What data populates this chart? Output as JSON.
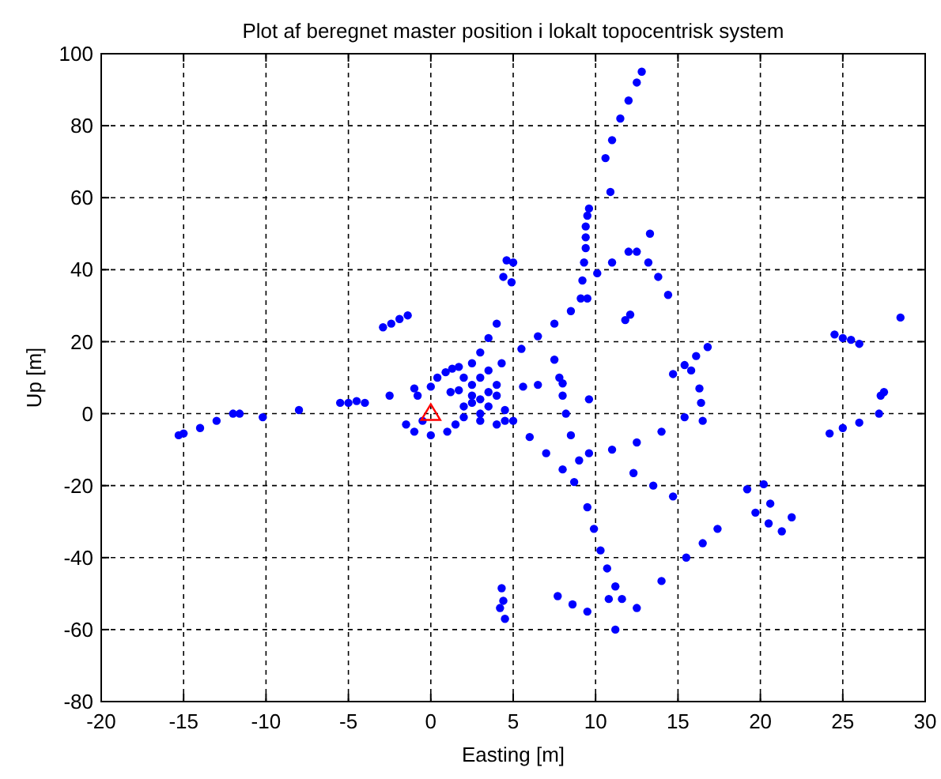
{
  "chart_data": {
    "type": "scatter",
    "title": "Plot af beregnet master position i lokalt topocentrisk system",
    "xlabel": "Easting [m]",
    "ylabel": "Up [m]",
    "xlim": [
      -20,
      30
    ],
    "xticks": [
      -20,
      -15,
      -10,
      -5,
      0,
      5,
      10,
      15,
      20,
      25,
      30
    ],
    "ylim": [
      -80,
      100
    ],
    "yticks": [
      -80,
      -60,
      -40,
      -20,
      0,
      20,
      40,
      60,
      80,
      100
    ],
    "grid": true,
    "series": [
      {
        "color": "#0000ff",
        "marker": "circle",
        "x": [
          -15.3,
          -15,
          -14,
          -13,
          -12,
          -11.6,
          -10.2,
          -8,
          -5.5,
          -5,
          -4.5,
          -4,
          -2.5,
          -1,
          0,
          -1.5,
          -1,
          0,
          -0.5,
          1,
          1.5,
          -2.9,
          -2.4,
          -1.9,
          -1.4,
          0.4,
          0.9,
          1.3,
          1.7,
          -0.8,
          1.2,
          1.7,
          2,
          2.5,
          3,
          3,
          3.5,
          4,
          3,
          4,
          2,
          2.5,
          3,
          3.5,
          4.5,
          4,
          3.5,
          2.5,
          4.5,
          2,
          2.5,
          3,
          3.5,
          4,
          4.3,
          5.5,
          6.5,
          7.5,
          8.5,
          9.5,
          9.1,
          9.2,
          9.3,
          9.4,
          9.4,
          9.4,
          9.5,
          9.6,
          10.1,
          11,
          12,
          13.3,
          12.5,
          13.2,
          13.8,
          14.4,
          10.6,
          11,
          11.5,
          12,
          12.5,
          12.8,
          10.9,
          4.6,
          5,
          4.4,
          4.9,
          7.5,
          7.8,
          8,
          8.2,
          8.5,
          9,
          5,
          6,
          7,
          8,
          8.7,
          9.6,
          11,
          12.5,
          14,
          15.4,
          15.8,
          16.3,
          16.4,
          16.5,
          14.7,
          15.4,
          16.1,
          16.8,
          11.8,
          12.1,
          9.6,
          5.6,
          6.5,
          8,
          24.5,
          25,
          25.5,
          26,
          28.5,
          27.5,
          27.3,
          24.2,
          25,
          26,
          27.2,
          19.2,
          20.2,
          20.6,
          19.7,
          20.5,
          21.3,
          21.9,
          12.3,
          13.5,
          14.7,
          9.5,
          9.9,
          10.3,
          10.7,
          11.2,
          10.8,
          11.6,
          11.2,
          12.5,
          14,
          15.5,
          16.5,
          17.4,
          7.7,
          8.6,
          9.5,
          4.3,
          4.4,
          4.5,
          4.2
        ],
        "values": [
          -6,
          -5.5,
          -4,
          -2,
          0,
          0,
          -1,
          1,
          3,
          3,
          3.5,
          3,
          5,
          7,
          7.5,
          -3,
          -5,
          -6,
          -2,
          -5,
          -3,
          24,
          25,
          26.3,
          27.3,
          10,
          11.5,
          12.5,
          13,
          5,
          6,
          6.5,
          2,
          3,
          4,
          0,
          2,
          5,
          -2,
          -3,
          -1,
          8,
          10,
          6,
          1,
          8,
          12,
          5,
          -2,
          10,
          14,
          17,
          21,
          25,
          14,
          18,
          21.5,
          25,
          28.5,
          32,
          32,
          37,
          42,
          46,
          49,
          52,
          55,
          57,
          39,
          42,
          45,
          50,
          45,
          42,
          38,
          33,
          71,
          76,
          82,
          87,
          92,
          95,
          61.6,
          42.6,
          42,
          38,
          36.5,
          15,
          10,
          5,
          0,
          -6,
          -13,
          -2,
          -6.5,
          -11,
          -15.5,
          -19,
          -11,
          -10,
          -8,
          -5,
          -1,
          12,
          7,
          3,
          -2,
          11,
          13.5,
          16,
          18.5,
          26,
          27.5,
          4,
          7.5,
          8,
          8.4,
          22,
          21,
          20.5,
          19.4,
          26.7,
          6,
          5,
          -5.5,
          -4,
          -2.5,
          0,
          -21,
          -19.6,
          -25,
          -27.5,
          -30.5,
          -32.7,
          -28.8,
          -16.5,
          -20,
          -23,
          -26,
          -32,
          -38,
          -43,
          -48,
          -51.5,
          -51.5,
          -60,
          -54,
          -46.5,
          -40,
          -36,
          -32,
          -50.7,
          -53,
          -55,
          -48.5,
          -52,
          -57,
          -54
        ]
      },
      {
        "color": "#ff0000",
        "marker": "triangle",
        "x": [
          0
        ],
        "values": [
          0
        ]
      }
    ]
  }
}
